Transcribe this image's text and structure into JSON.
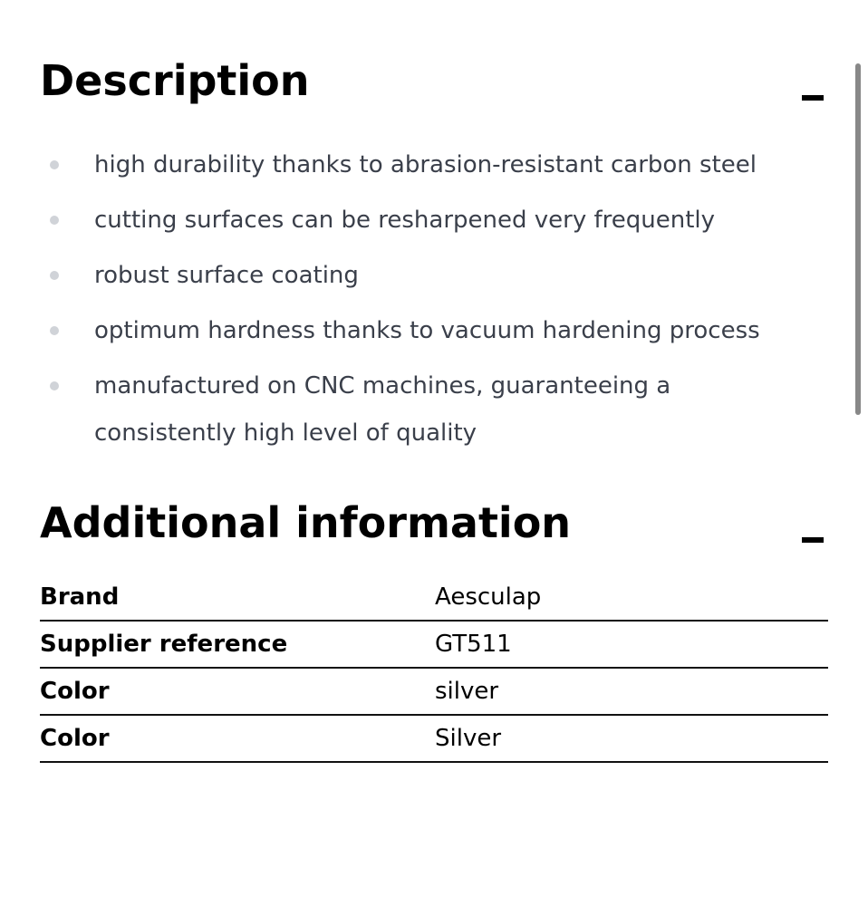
{
  "description": {
    "title": "Description",
    "bullets": [
      "high durability thanks to abrasion-resistant carbon steel",
      "cutting surfaces can be resharpened very frequently",
      "robust surface coating",
      "optimum hardness thanks to vacuum hardening process",
      "manufactured on CNC machines, guaranteeing a consistently high level of quality"
    ]
  },
  "additional": {
    "title": "Additional information",
    "rows": [
      {
        "label": "Brand",
        "value": "Aesculap"
      },
      {
        "label": "Supplier reference",
        "value": "GT511"
      },
      {
        "label": "Color",
        "value": "silver"
      },
      {
        "label": "Color",
        "value": "Silver"
      }
    ]
  }
}
